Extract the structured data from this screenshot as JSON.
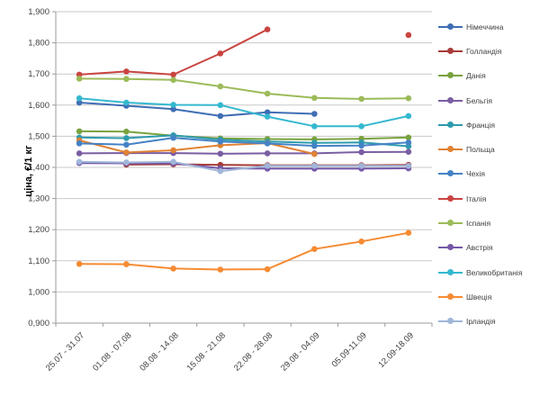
{
  "chart_data": {
    "type": "line",
    "title": "",
    "ylabel": "ціна, €/1 кг",
    "xlabel": "",
    "ylim": [
      900,
      1900
    ],
    "ytick_step": 100,
    "ytick_labels": [
      "0,900",
      "1,000",
      "1,100",
      "1,200",
      "1,300",
      "1,400",
      "1,500",
      "1,600",
      "1,700",
      "1,800",
      "1,900"
    ],
    "grid": true,
    "legend_position": "right",
    "categories": [
      "25.07 - 31.07",
      "01.08 - 07.08",
      "08.08 - 14.08",
      "15.08 - 21.08",
      "22.08 - 28.08",
      "29.08 - 04.09",
      "05.09-11.09",
      "12.09-18.09"
    ],
    "series": [
      {
        "id": "germany",
        "name": "Німеччина",
        "color": "#3F6EB4",
        "values": [
          1608,
          1598,
          1587,
          1565,
          1577,
          1572,
          null,
          null
        ]
      },
      {
        "id": "netherlands",
        "name": "Голландія",
        "color": "#A73C38",
        "values": [
          null,
          1409,
          1410,
          1408,
          1407,
          1407,
          1407,
          1408
        ]
      },
      {
        "id": "denmark",
        "name": "Данія",
        "color": "#79A23E",
        "values": [
          1516,
          1515,
          1502,
          1493,
          1491,
          1490,
          1492,
          1496
        ]
      },
      {
        "id": "belgium",
        "name": "Бельгія",
        "color": "#7A5EA2",
        "values": [
          1445,
          1446,
          1446,
          1444,
          1445,
          1445,
          1449,
          1450
        ]
      },
      {
        "id": "france",
        "name": "Франція",
        "color": "#2E9BAD",
        "values": [
          1496,
          1494,
          1503,
          1489,
          1483,
          1479,
          1480,
          1468
        ]
      },
      {
        "id": "poland",
        "name": "Польща",
        "color": "#E08234",
        "values": [
          1487,
          1448,
          1455,
          1471,
          1478,
          1443,
          null,
          null
        ]
      },
      {
        "id": "czechia",
        "name": "Чехія",
        "color": "#4482C6",
        "values": [
          1477,
          1473,
          1495,
          1483,
          1477,
          1469,
          1470,
          1480
        ]
      },
      {
        "id": "italy",
        "name": "Італія",
        "color": "#C94441",
        "values": [
          1698,
          1708,
          1698,
          1766,
          1843,
          null,
          null,
          1825
        ]
      },
      {
        "id": "spain",
        "name": "Іспанія",
        "color": "#9CBB59",
        "values": [
          1685,
          1684,
          1681,
          1660,
          1637,
          1623,
          1620,
          1622
        ]
      },
      {
        "id": "austria",
        "name": "Австрія",
        "color": "#7558A8",
        "values": [
          1414,
          1413,
          1413,
          1397,
          1396,
          1396,
          1396,
          1397
        ]
      },
      {
        "id": "uk",
        "name": "Великобританія",
        "color": "#35B8D0",
        "values": [
          1622,
          1608,
          1601,
          1600,
          1563,
          1532,
          1532,
          1565
        ]
      },
      {
        "id": "sweden",
        "name": "Швеція",
        "color": "#F68B33",
        "values": [
          1090,
          1089,
          1075,
          1072,
          1073,
          1138,
          1162,
          1190
        ]
      },
      {
        "id": "ireland",
        "name": "Ірландія",
        "color": "#A0B6D9",
        "values": [
          1418,
          1416,
          1418,
          1388,
          1405,
          1405,
          1405,
          1405
        ]
      }
    ]
  }
}
